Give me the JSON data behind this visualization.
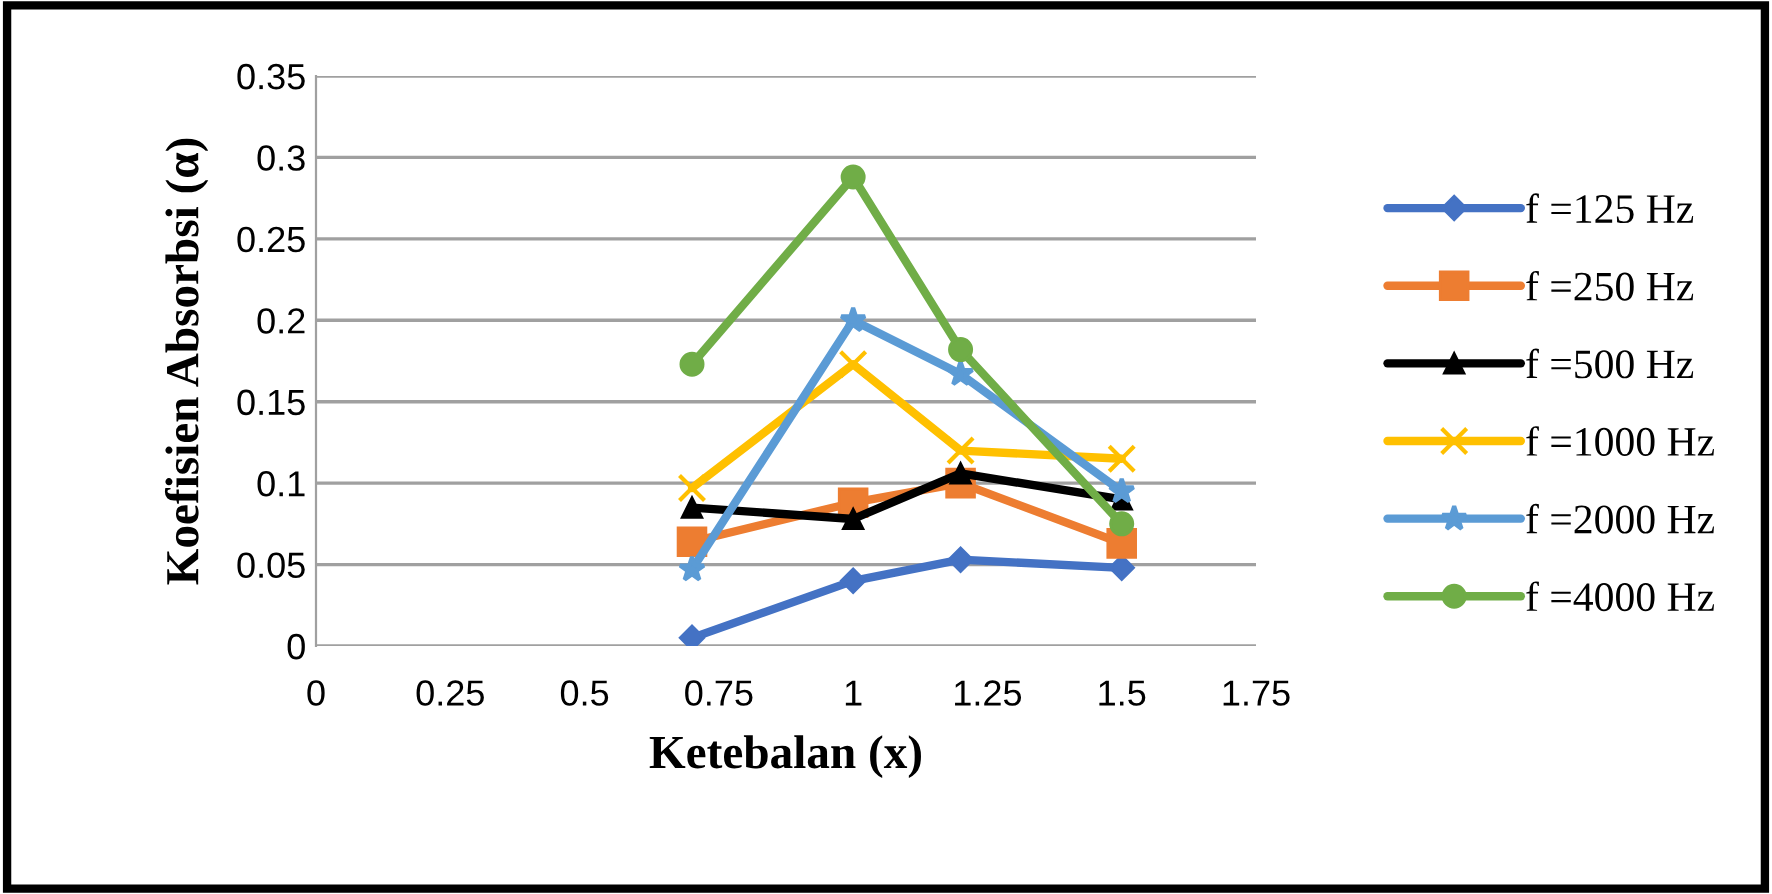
{
  "chart_data": {
    "type": "line",
    "xlabel": "Ketebalan (x)",
    "ylabel": "Koefisien Absorbsi (α)",
    "x": [
      0.7,
      1,
      1.2,
      1.5
    ],
    "xlim": [
      0,
      1.75
    ],
    "xticks": [
      0,
      0.25,
      0.5,
      0.75,
      1,
      1.25,
      1.5,
      1.75
    ],
    "ylim": [
      0,
      0.35
    ],
    "yticks": [
      0,
      0.05,
      0.1,
      0.15,
      0.2,
      0.25,
      0.3,
      0.35
    ],
    "grid": "y",
    "legend": "right",
    "line_style": "solid",
    "series": [
      {
        "name": "f =125 Hz",
        "color": "#4472c4",
        "marker": "diamond",
        "values": [
          0.005,
          0.04,
          0.053,
          0.048
        ]
      },
      {
        "name": "f =250 Hz",
        "color": "#ed7d31",
        "marker": "square",
        "values": [
          0.064,
          0.088,
          0.1,
          0.063
        ]
      },
      {
        "name": "f =500 Hz",
        "color": "#000000",
        "marker": "triangle",
        "values": [
          0.085,
          0.078,
          0.106,
          0.09
        ]
      },
      {
        "name": "f =1000 Hz",
        "color": "#ffc000",
        "marker": "cross",
        "values": [
          0.097,
          0.173,
          0.12,
          0.115
        ]
      },
      {
        "name": "f =2000 Hz",
        "color": "#5b9bd5",
        "marker": "star",
        "values": [
          0.047,
          0.2,
          0.167,
          0.095
        ]
      },
      {
        "name": "f =4000 Hz",
        "color": "#70ad47",
        "marker": "circle",
        "values": [
          0.173,
          0.288,
          0.182,
          0.075
        ]
      }
    ]
  }
}
